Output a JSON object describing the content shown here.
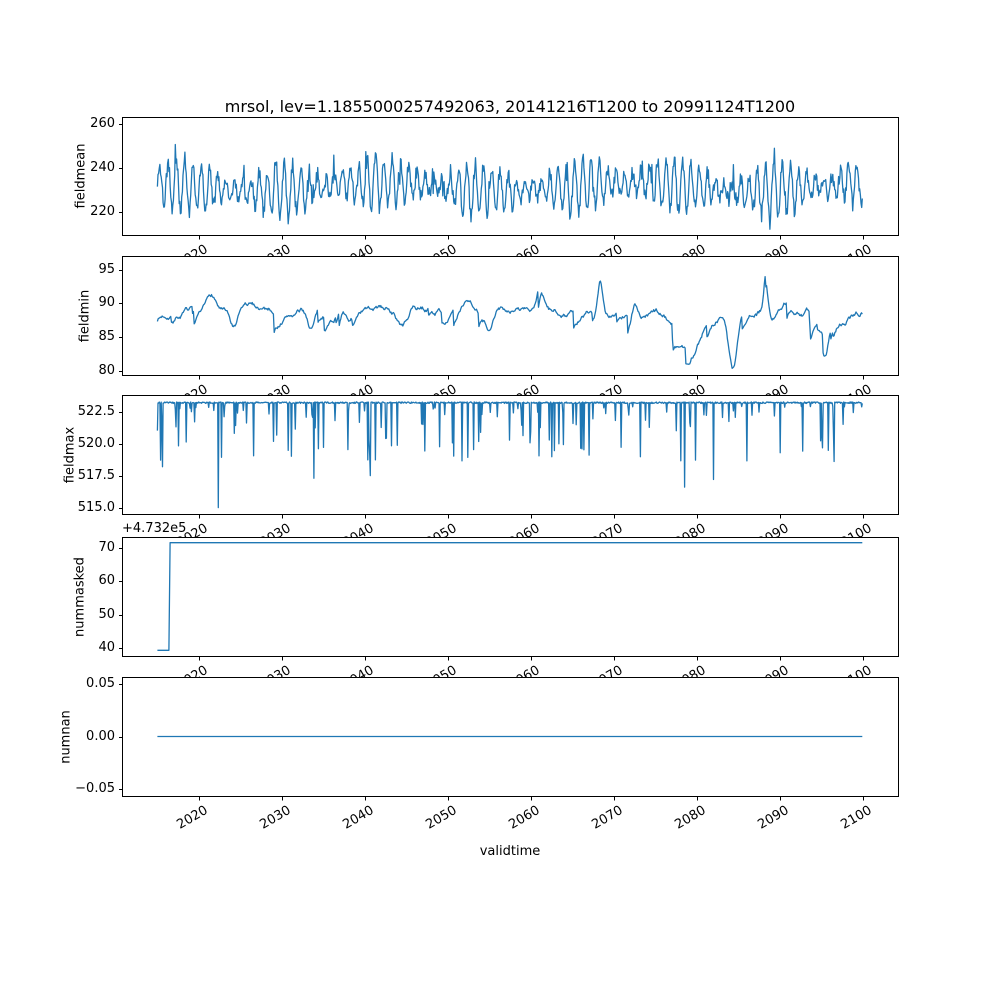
{
  "figure": {
    "title": "mrsol, lev=1.1855000257492063, 20141216T1200 to 20991124T1200",
    "xlabel": "validtime",
    "line_color": "#1f77b4",
    "background": "#ffffff",
    "xlim": [
      2010.7,
      2104.2
    ],
    "xticks": {
      "values": [
        2020,
        2030,
        2040,
        2050,
        2060,
        2070,
        2080,
        2090,
        2100
      ],
      "labels": [
        "2020",
        "2030",
        "2040",
        "2050",
        "2060",
        "2070",
        "2080",
        "2090",
        "2100"
      ]
    }
  },
  "chart_data": [
    {
      "type": "line",
      "ylabel": "fieldmean",
      "x_range": [
        2014.96,
        2099.9
      ],
      "ylim": [
        209.5,
        263.2
      ],
      "yticks": {
        "values": [
          220,
          240,
          260
        ],
        "labels": [
          "220",
          "240",
          "260"
        ]
      },
      "summary": "Dense annual-cycle series oscillating between about 212 and 260, mean near 232, occasional peaks reaching 260",
      "gen": {
        "mode": "seasonal",
        "seed": 11,
        "n": 1100,
        "base": 231.5,
        "season_amp": 8,
        "amp_var": 4,
        "noise": 6,
        "spike_up": 12,
        "clamp": [
          211.5,
          260.5
        ]
      }
    },
    {
      "type": "line",
      "ylabel": "fieldmin",
      "x_range": [
        2014.96,
        2099.9
      ],
      "ylim": [
        79.4,
        97.0
      ],
      "yticks": {
        "values": [
          80,
          85,
          90,
          95
        ],
        "labels": [
          "80",
          "85",
          "90",
          "95"
        ]
      },
      "summary": "Slowly wandering series around 85-92 with a deep dip to about 80.3 near 2084 and sharp peaks to about 96 near 2068 and 2088",
      "gen": {
        "mode": "walk",
        "seed": 7,
        "n": 900,
        "start": 87.5,
        "mean": 88.3,
        "revert": 0.06,
        "drift": 0.05,
        "step": 0.55,
        "clamp": [
          84.0,
          91.5
        ],
        "final_clamp": [
          79.9,
          96.2
        ],
        "events": [
          {
            "x": 2021.5,
            "a": 2.2,
            "w": 0.7
          },
          {
            "x": 2024.2,
            "a": -3.2,
            "w": 0.8
          },
          {
            "x": 2033.5,
            "a": -2.6,
            "w": 0.6
          },
          {
            "x": 2037.2,
            "a": 2.8,
            "w": 0.5
          },
          {
            "x": 2044.5,
            "a": -2.5,
            "w": 0.9
          },
          {
            "x": 2052.3,
            "a": 2.6,
            "w": 1.1
          },
          {
            "x": 2055.0,
            "a": -3.0,
            "w": 0.5
          },
          {
            "x": 2061.2,
            "a": 3.4,
            "w": 0.6
          },
          {
            "x": 2068.3,
            "a": 5.6,
            "w": 0.45
          },
          {
            "x": 2072.5,
            "a": 2.8,
            "w": 0.5
          },
          {
            "x": 2079.0,
            "a": -4.2,
            "w": 2.2
          },
          {
            "x": 2084.3,
            "a": -8.6,
            "w": 0.7
          },
          {
            "x": 2088.3,
            "a": 6.4,
            "w": 0.35
          },
          {
            "x": 2091.0,
            "a": 2.2,
            "w": 1.5
          },
          {
            "x": 2095.5,
            "a": -3.4,
            "w": 0.5
          }
        ]
      }
    },
    {
      "type": "line",
      "ylabel": "fieldmax",
      "x_range": [
        2014.96,
        2099.9
      ],
      "ylim": [
        514.5,
        523.8
      ],
      "yticks": {
        "values": [
          515.0,
          517.5,
          520.0,
          522.5
        ],
        "labels": [
          "515.0",
          "517.5",
          "520.0",
          "522.5"
        ]
      },
      "summary": "Nearly constant near 523.2 with frequent short downward spikes, deepest to 515.0 near 2022",
      "gen": {
        "mode": "spikes",
        "seed": 23,
        "n": 1100,
        "base": 523.2,
        "jitter": 0.12,
        "spike_p": 0.09,
        "spike_min": 0.3,
        "spike_max": 4.6,
        "forced": [
          [
            2015.6,
            518.2
          ],
          [
            2022.3,
            515.0
          ],
          [
            2033.8,
            517.3
          ],
          [
            2040.6,
            517.5
          ],
          [
            2078.5,
            516.6
          ],
          [
            2082.0,
            517.2
          ],
          [
            2096.5,
            518.6
          ]
        ]
      }
    },
    {
      "type": "line",
      "ylabel": "nummasked",
      "x_range": [
        2014.96,
        2099.9
      ],
      "ylim": [
        37.6,
        73.2
      ],
      "offset_text": "+4.732e5",
      "yticks": {
        "values": [
          40,
          50,
          60,
          70
        ],
        "labels": [
          "40",
          "50",
          "60",
          "70"
        ]
      },
      "summary": "Step function with axis offset +4.732e5: about 39 until late 2016, then about 71 for the rest of the record",
      "points": [
        [
          2014.96,
          39.3
        ],
        [
          2016.35,
          39.3
        ],
        [
          2016.5,
          71.5
        ],
        [
          2099.9,
          71.5
        ]
      ]
    },
    {
      "type": "line",
      "ylabel": "numnan",
      "x_range": [
        2014.96,
        2099.9
      ],
      "ylim": [
        -0.057,
        0.057
      ],
      "yticks": {
        "values": [
          -0.05,
          0.0,
          0.05
        ],
        "labels": [
          "−0.05",
          "0.00",
          "0.05"
        ]
      },
      "summary": "Constant zero for the whole record",
      "points": [
        [
          2014.96,
          0
        ],
        [
          2099.9,
          0
        ]
      ]
    }
  ]
}
